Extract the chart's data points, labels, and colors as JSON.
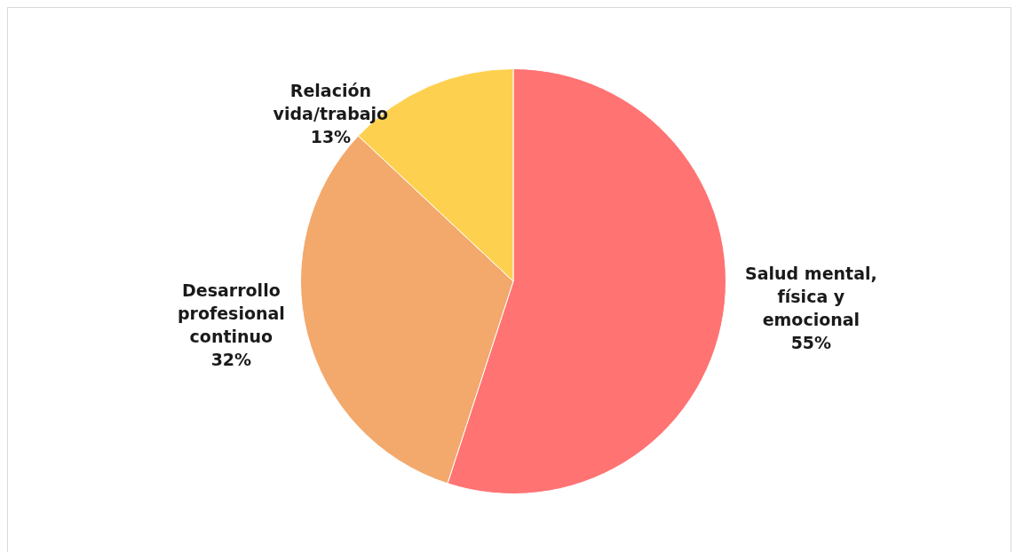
{
  "chart_data": {
    "type": "pie",
    "categories": [
      "Salud mental, física y emocional",
      "Desarrollo profesional continuo",
      "Relación vida/trabajo"
    ],
    "values": [
      55,
      32,
      13
    ],
    "colors": [
      "#ff7373",
      "#f3a86c",
      "#fdd14f"
    ],
    "value_labels": [
      "55%",
      "32%",
      "13%"
    ],
    "legend": false
  }
}
